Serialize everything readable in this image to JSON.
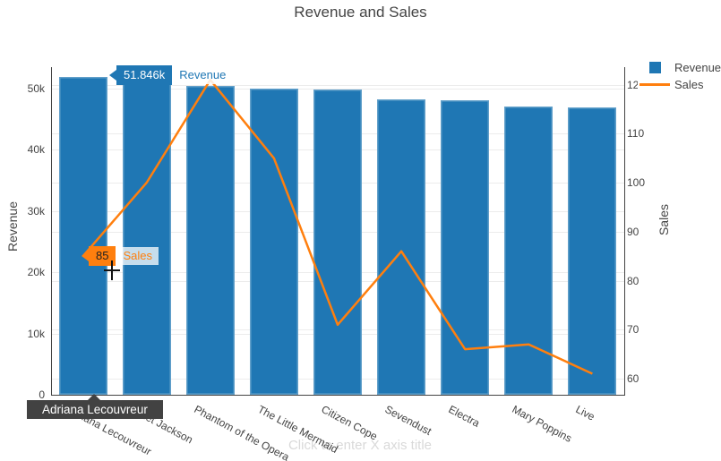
{
  "title": "Revenue and Sales",
  "chart_data": {
    "type": "bar+line",
    "categories": [
      "Adriana Lecouvreur",
      "Janet Jackson",
      "Phantom of the Opera",
      "The Little Mermaid",
      "Citizen Cope",
      "Sevendust",
      "Electra",
      "Mary Poppins",
      "Live"
    ],
    "series": [
      {
        "name": "Revenue",
        "type": "bar",
        "yaxis": "left",
        "color": "#1f77b4",
        "values": [
          51846,
          50800,
          50400,
          50000,
          49800,
          48200,
          48000,
          47000,
          46800
        ]
      },
      {
        "name": "Sales",
        "type": "line",
        "yaxis": "right",
        "color": "#ff7f0e",
        "values": [
          85,
          100,
          121,
          105,
          71,
          86,
          66,
          67,
          61
        ]
      }
    ],
    "left_axis": {
      "title": "Revenue",
      "tick_labels": [
        "0",
        "10k",
        "20k",
        "30k",
        "40k",
        "50k"
      ],
      "tick_values": [
        0,
        10000,
        20000,
        30000,
        40000,
        50000
      ],
      "range": [
        0,
        53430
      ]
    },
    "right_axis": {
      "title": "Sales",
      "tick_labels": [
        "60",
        "70",
        "80",
        "90",
        "100",
        "110",
        "120"
      ],
      "tick_values": [
        60,
        70,
        80,
        90,
        100,
        110,
        120
      ],
      "range": [
        56.7,
        123.6
      ]
    },
    "x_axis": {
      "title_placeholder": "Click to enter X axis title"
    },
    "legend": {
      "items": [
        {
          "label": "Revenue",
          "swatch": "square",
          "color": "#1f77b4"
        },
        {
          "label": "Sales",
          "swatch": "line",
          "color": "#ff7f0e"
        }
      ]
    },
    "grid": true
  },
  "hover_labels": {
    "revenue": {
      "value": "51.846k",
      "name": "Revenue"
    },
    "sales": {
      "value": "85",
      "name": "Sales"
    },
    "category": {
      "text": "Adriana Lecouvreur"
    }
  },
  "colors": {
    "bar": "#1f77b4",
    "line": "#ff7f0e",
    "text": "#444444",
    "grid": "#ececec",
    "placeholder": "#d9d9d9",
    "tooltip_dark_bg": "#424242",
    "background": "#ffffff"
  }
}
